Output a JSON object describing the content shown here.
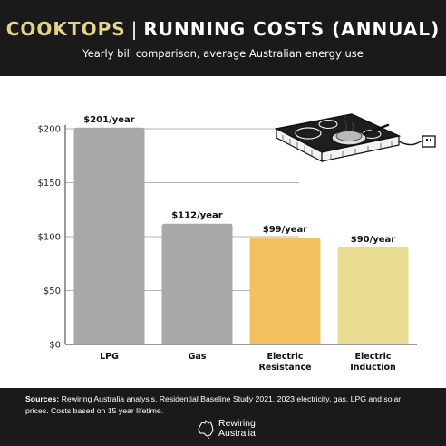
{
  "header": {
    "title_part1": "COOKTOPS",
    "title_separator": "|",
    "title_part2": "RUNNING COSTS (ANNUAL)",
    "subtitle": "Yearly bill comparison, average Australian energy use"
  },
  "colors": {
    "header_bg": "#1a1a1a",
    "title_accent": "#e4d488",
    "bar_gray": "#a8a9ab",
    "bar_orange": "#f0c15e",
    "bar_yellow": "#e7dc91"
  },
  "chart_data": {
    "type": "bar",
    "categories": [
      "LPG",
      "Gas",
      "Electric Resistance",
      "Electric Induction"
    ],
    "category_lines": [
      [
        "LPG"
      ],
      [
        "Gas"
      ],
      [
        "Electric",
        "Resistance"
      ],
      [
        "Electric",
        "Induction"
      ]
    ],
    "values": [
      201,
      112,
      99,
      90
    ],
    "data_labels": [
      "$201/year",
      "$112/year",
      "$99/year",
      "$90/year"
    ],
    "bar_colors": [
      "#a8a9ab",
      "#a8a9ab",
      "#f0c15e",
      "#e7dc91"
    ],
    "yticks": [
      0,
      50,
      100,
      150,
      200
    ],
    "ytick_labels": [
      "$0",
      "$50",
      "$100",
      "$150",
      "$200"
    ],
    "ylim": [
      0,
      200
    ],
    "grid": true,
    "title": "",
    "xlabel": "",
    "ylabel": ""
  },
  "illustration": {
    "icon": "cooktop-with-frying-pan-icon"
  },
  "footer": {
    "sources_label": "Sources:",
    "sources_text": "Rewiring Australia analysis. Residential Baseline Study 2021. 2023 electricity, gas, LPG and solar prices. Costs based on 15 year lifetime.",
    "logo_line1": "Rewiring",
    "logo_line2": "Australia",
    "logo_icon": "australia-map-icon"
  }
}
